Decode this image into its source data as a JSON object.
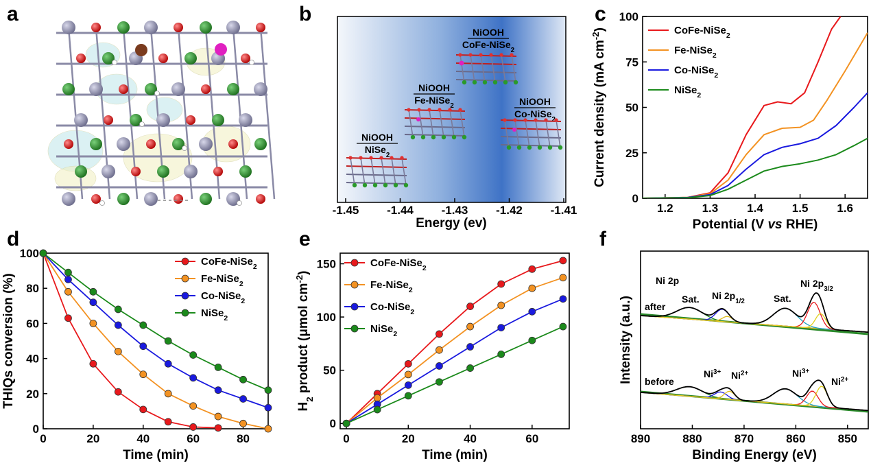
{
  "panels": {
    "a": {
      "label": "a"
    },
    "b": {
      "label": "b",
      "xlabel": "Energy (ev)",
      "xticks": [
        "-1.45",
        "-1.44",
        "-1.43",
        "-1.42",
        "-1.41"
      ],
      "structures": [
        {
          "top": "NiOOH",
          "bottom": "NiSe",
          "sub": "2"
        },
        {
          "top": "NiOOH",
          "bottom": "Fe-NiSe",
          "sub": "2"
        },
        {
          "top": "NiOOH",
          "bottom": "CoFe-NiSe",
          "sub": "2"
        },
        {
          "top": "NiOOH",
          "bottom": "Co-NiSe",
          "sub": "2"
        }
      ]
    },
    "c": {
      "label": "c"
    },
    "d": {
      "label": "d"
    },
    "e": {
      "label": "e"
    },
    "f": {
      "label": "f",
      "title": "Ni 2p",
      "labels_after": {
        "state": "after",
        "sat1": "Sat.",
        "p12": "Ni 2p",
        "p12_sub": "1/2",
        "sat2": "Sat.",
        "p32": "Ni 2p",
        "p32_sub": "3/2"
      },
      "labels_before": {
        "state": "before",
        "ni3a": "Ni",
        "ni3a_sup": "3+",
        "ni2a": "Ni",
        "ni2a_sup": "2+",
        "ni3b": "Ni",
        "ni3b_sup": "3+",
        "ni2b": "Ni",
        "ni2b_sup": "2+"
      }
    }
  },
  "chart_data": [
    {
      "panel": "c",
      "type": "line",
      "xlabel": "Potential (V vs RHE)",
      "ylabel": "Current density (mA cm-2)",
      "xlim": [
        1.15,
        1.65
      ],
      "ylim": [
        0,
        100
      ],
      "xticks": [
        1.2,
        1.3,
        1.4,
        1.5,
        1.6
      ],
      "yticks": [
        0,
        25,
        50,
        75,
        100
      ],
      "legend_position": "top-left",
      "series": [
        {
          "name": "CoFe-NiSe2",
          "color": "#e8191c",
          "x": [
            1.15,
            1.25,
            1.3,
            1.34,
            1.38,
            1.42,
            1.45,
            1.48,
            1.51,
            1.54,
            1.57,
            1.59
          ],
          "y": [
            0,
            0.5,
            3,
            14,
            35,
            51,
            53,
            52,
            58,
            75,
            93,
            100
          ]
        },
        {
          "name": "Fe-NiSe2",
          "color": "#f39222",
          "x": [
            1.15,
            1.25,
            1.3,
            1.34,
            1.38,
            1.42,
            1.46,
            1.5,
            1.53,
            1.56,
            1.6,
            1.65
          ],
          "y": [
            0,
            0.5,
            2.5,
            10,
            24,
            35,
            38.5,
            39,
            43,
            54,
            70,
            91
          ]
        },
        {
          "name": "Co-NiSe2",
          "color": "#1a1adf",
          "x": [
            1.15,
            1.25,
            1.3,
            1.34,
            1.38,
            1.42,
            1.46,
            1.5,
            1.54,
            1.58,
            1.62,
            1.65
          ],
          "y": [
            0,
            0.4,
            2,
            7,
            16,
            24,
            28,
            30,
            33,
            40,
            50,
            58
          ]
        },
        {
          "name": "NiSe2",
          "color": "#1b8a1b",
          "x": [
            1.15,
            1.25,
            1.3,
            1.34,
            1.38,
            1.42,
            1.46,
            1.5,
            1.54,
            1.58,
            1.62,
            1.65
          ],
          "y": [
            0,
            0.3,
            1.5,
            5,
            10,
            15,
            17.5,
            19,
            21,
            24,
            29,
            33
          ]
        }
      ]
    },
    {
      "panel": "d",
      "type": "line",
      "xlabel": "Time (min)",
      "ylabel": "THIQs conversion (%)",
      "xlim": [
        0,
        90
      ],
      "ylim": [
        0,
        100
      ],
      "xticks": [
        0,
        20,
        40,
        60,
        80
      ],
      "yticks": [
        0,
        20,
        40,
        60,
        80,
        100
      ],
      "legend_position": "top-right",
      "series": [
        {
          "name": "CoFe-NiSe2",
          "color": "#e8191c",
          "x": [
            0,
            10,
            20,
            30,
            40,
            50,
            60,
            70
          ],
          "y": [
            100,
            63,
            37,
            21,
            11,
            4,
            1,
            0.5
          ]
        },
        {
          "name": "Fe-NiSe2",
          "color": "#f39222",
          "x": [
            0,
            10,
            20,
            30,
            40,
            50,
            60,
            70,
            80,
            90
          ],
          "y": [
            100,
            78,
            60,
            44,
            31,
            20,
            13,
            7,
            3,
            0
          ]
        },
        {
          "name": "Co-NiSe2",
          "color": "#1a1adf",
          "x": [
            0,
            10,
            20,
            30,
            40,
            50,
            60,
            70,
            80,
            90
          ],
          "y": [
            100,
            85,
            72,
            59,
            47,
            37,
            29,
            22,
            17,
            12
          ]
        },
        {
          "name": "NiSe2",
          "color": "#1b8a1b",
          "x": [
            0,
            10,
            20,
            30,
            40,
            50,
            60,
            70,
            80,
            90
          ],
          "y": [
            100,
            89,
            78,
            68,
            59,
            50,
            42,
            35,
            28,
            22
          ]
        }
      ]
    },
    {
      "panel": "e",
      "type": "line",
      "xlabel": "Time (min)",
      "ylabel": "H2 product (μmol cm-2)",
      "xlim": [
        -2,
        72
      ],
      "ylim": [
        -5,
        160
      ],
      "xticks": [
        0,
        20,
        40,
        60
      ],
      "yticks": [
        0,
        50,
        100,
        150
      ],
      "legend_position": "top-left",
      "series": [
        {
          "name": "CoFe-NiSe2",
          "color": "#e8191c",
          "x": [
            0,
            10,
            20,
            30,
            40,
            50,
            60,
            70
          ],
          "y": [
            0,
            28,
            56,
            84,
            110,
            131,
            145,
            153
          ]
        },
        {
          "name": "Fe-NiSe2",
          "color": "#f39222",
          "x": [
            0,
            10,
            20,
            30,
            40,
            50,
            60,
            70
          ],
          "y": [
            0,
            24,
            46,
            69,
            91,
            111,
            127,
            137
          ]
        },
        {
          "name": "Co-NiSe2",
          "color": "#1a1adf",
          "x": [
            0,
            10,
            20,
            30,
            40,
            50,
            60,
            70
          ],
          "y": [
            0,
            18,
            36,
            54,
            72,
            90,
            105,
            117
          ]
        },
        {
          "name": "NiSe2",
          "color": "#1b8a1b",
          "x": [
            0,
            10,
            20,
            30,
            40,
            50,
            60,
            70
          ],
          "y": [
            0,
            13,
            26,
            39,
            52,
            65,
            78,
            91
          ]
        }
      ]
    },
    {
      "panel": "f",
      "type": "line",
      "xlabel": "Binding Energy (eV)",
      "ylabel": "Intensity (a.u.)",
      "xlim": [
        890,
        846
      ],
      "xticks": [
        890,
        880,
        870,
        860,
        850
      ],
      "y_ticks_shown": false
    }
  ]
}
